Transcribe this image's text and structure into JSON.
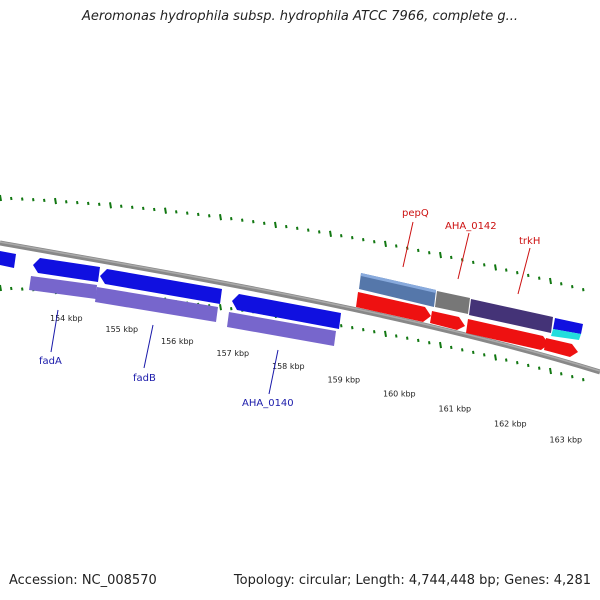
{
  "title": "Aeromonas hydrophila subsp. hydrophila ATCC 7966, complete g...",
  "footer": {
    "accession": "Accession: NC_008570",
    "stats": "Topology: circular; Length: 4,744,448 bp; Genes: 4,281"
  },
  "colors": {
    "forward_cds": "#1010e0",
    "forward_gene": "#7766cc",
    "reverse_cds": "#ee1111",
    "ruler": "#117711",
    "backbone": "#888888",
    "label_forward": "#1a1aaa",
    "label_reverse": "#cc1111"
  },
  "ticks": [
    {
      "label": "154 kbp"
    },
    {
      "label": "155 kbp"
    },
    {
      "label": "156 kbp"
    },
    {
      "label": "157 kbp"
    },
    {
      "label": "158 kbp"
    },
    {
      "label": "159 kbp"
    },
    {
      "label": "160 kbp"
    },
    {
      "label": "161 kbp"
    },
    {
      "label": "162 kbp"
    },
    {
      "label": "163 kbp"
    }
  ],
  "gene_labels": [
    {
      "name": "fadA",
      "strand": "forward"
    },
    {
      "name": "fadB",
      "strand": "forward"
    },
    {
      "name": "AHA_0140",
      "strand": "forward"
    },
    {
      "name": "pepQ",
      "strand": "reverse"
    },
    {
      "name": "AHA_0142",
      "strand": "reverse"
    },
    {
      "name": "trkH",
      "strand": "reverse"
    }
  ]
}
